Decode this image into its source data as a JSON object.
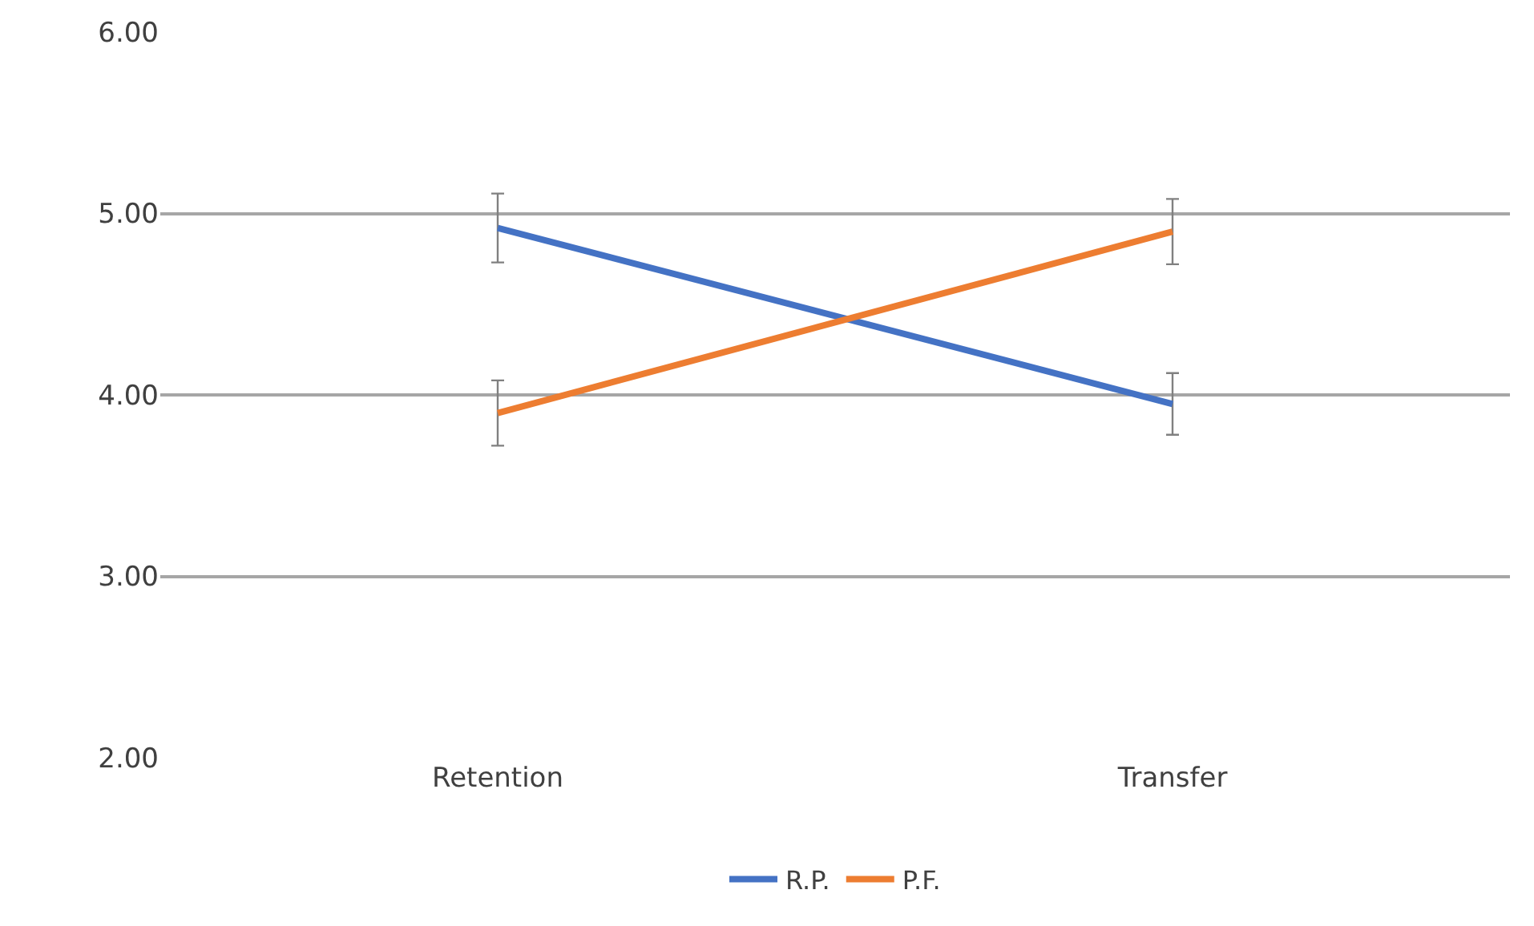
{
  "chart_data": {
    "type": "line",
    "categories": [
      "Retention",
      "Transfer"
    ],
    "series": [
      {
        "name": "R.P.",
        "color": "#4472c4",
        "values": [
          4.92,
          3.95
        ],
        "errors": [
          0.19,
          0.17
        ]
      },
      {
        "name": "P.F.",
        "color": "#ed7d31",
        "values": [
          3.9,
          4.9
        ],
        "errors": [
          0.18,
          0.18
        ]
      }
    ],
    "ylim": [
      2,
      6
    ],
    "yticks": [
      {
        "value": 2,
        "label": "2.00"
      },
      {
        "value": 3,
        "label": "3.00"
      },
      {
        "value": 4,
        "label": "4.00"
      },
      {
        "value": 5,
        "label": "5.00"
      },
      {
        "value": 6,
        "label": "6.00"
      }
    ],
    "grid": "y",
    "legend": "bottom",
    "marker": "none",
    "line_style": "solid"
  }
}
